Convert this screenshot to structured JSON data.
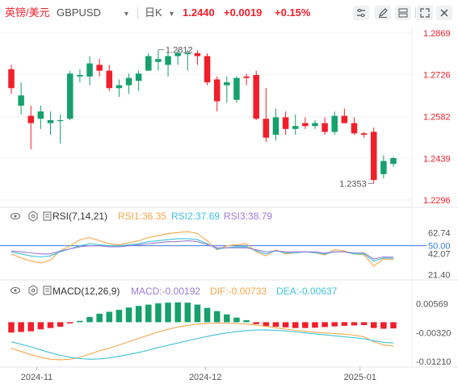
{
  "header": {
    "name": "英镑/美元",
    "symbol": "GBPUSD",
    "period": "日K",
    "price": "1.2440",
    "change": "+0.0019",
    "change_pct": "+0.15%"
  },
  "rsi_panel": {
    "title": "RSI(7,14,21)",
    "rsi1": "RSI1:36.35",
    "rsi2": "RSI2:37.69",
    "rsi3": "RSI3:38.79"
  },
  "macd_panel": {
    "title": "MACD(12,26,9)",
    "macd": "MACD:-0.00192",
    "dif": "DIF:-0.00733",
    "dea": "DEA:-0.00637"
  },
  "colors": {
    "up": "#16a06c",
    "down": "#f01f2a",
    "price": "#f01f2a",
    "rsi1": "#f5a64a",
    "rsi2": "#3fc1d8",
    "rsi3": "#9b7bd6",
    "dif": "#f5a64a",
    "dea": "#3fc1d8",
    "level": "#3a7bd5"
  },
  "chart_data": [
    {
      "type": "candlestick",
      "y_ticks": [
        "1.2869",
        "1.2726",
        "1.2582",
        "1.2439",
        "1.2296"
      ],
      "ylim": [
        1.2296,
        1.2869
      ],
      "x_ticks": [
        "2024-11",
        "2024-12",
        "2025-01"
      ],
      "annotations": {
        "high": "1.2812",
        "low": "1.2353"
      },
      "candles": [
        {
          "o": 1.2745,
          "h": 1.276,
          "l": 1.266,
          "c": 1.268
        },
        {
          "o": 1.262,
          "h": 1.27,
          "l": 1.259,
          "c": 1.2655
        },
        {
          "o": 1.2585,
          "h": 1.262,
          "l": 1.247,
          "c": 1.256
        },
        {
          "o": 1.2575,
          "h": 1.262,
          "l": 1.254,
          "c": 1.26
        },
        {
          "o": 1.256,
          "h": 1.26,
          "l": 1.252,
          "c": 1.257
        },
        {
          "o": 1.257,
          "h": 1.259,
          "l": 1.249,
          "c": 1.257
        },
        {
          "o": 1.2575,
          "h": 1.274,
          "l": 1.257,
          "c": 1.273
        },
        {
          "o": 1.272,
          "h": 1.2745,
          "l": 1.27,
          "c": 1.2725
        },
        {
          "o": 1.272,
          "h": 1.279,
          "l": 1.269,
          "c": 1.2765
        },
        {
          "o": 1.276,
          "h": 1.278,
          "l": 1.272,
          "c": 1.274
        },
        {
          "o": 1.274,
          "h": 1.276,
          "l": 1.267,
          "c": 1.268
        },
        {
          "o": 1.268,
          "h": 1.271,
          "l": 1.265,
          "c": 1.269
        },
        {
          "o": 1.269,
          "h": 1.273,
          "l": 1.266,
          "c": 1.2715
        },
        {
          "o": 1.2705,
          "h": 1.274,
          "l": 1.267,
          "c": 1.273
        },
        {
          "o": 1.274,
          "h": 1.28,
          "l": 1.274,
          "c": 1.279
        },
        {
          "o": 1.277,
          "h": 1.2812,
          "l": 1.274,
          "c": 1.278
        },
        {
          "o": 1.276,
          "h": 1.28,
          "l": 1.272,
          "c": 1.279
        },
        {
          "o": 1.279,
          "h": 1.2812,
          "l": 1.276,
          "c": 1.28
        },
        {
          "o": 1.28,
          "h": 1.281,
          "l": 1.274,
          "c": 1.28
        },
        {
          "o": 1.28,
          "h": 1.281,
          "l": 1.276,
          "c": 1.279
        },
        {
          "o": 1.279,
          "h": 1.28,
          "l": 1.269,
          "c": 1.27
        },
        {
          "o": 1.271,
          "h": 1.272,
          "l": 1.26,
          "c": 1.2635
        },
        {
          "o": 1.269,
          "h": 1.272,
          "l": 1.263,
          "c": 1.27
        },
        {
          "o": 1.264,
          "h": 1.272,
          "l": 1.263,
          "c": 1.2715
        },
        {
          "o": 1.272,
          "h": 1.273,
          "l": 1.269,
          "c": 1.2715
        },
        {
          "o": 1.2725,
          "h": 1.274,
          "l": 1.257,
          "c": 1.2575
        },
        {
          "o": 1.2575,
          "h": 1.268,
          "l": 1.2495,
          "c": 1.251
        },
        {
          "o": 1.252,
          "h": 1.261,
          "l": 1.25,
          "c": 1.258
        },
        {
          "o": 1.258,
          "h": 1.26,
          "l": 1.252,
          "c": 1.254
        },
        {
          "o": 1.254,
          "h": 1.259,
          "l": 1.252,
          "c": 1.255
        },
        {
          "o": 1.256,
          "h": 1.258,
          "l": 1.254,
          "c": 1.255
        },
        {
          "o": 1.255,
          "h": 1.257,
          "l": 1.254,
          "c": 1.256
        },
        {
          "o": 1.256,
          "h": 1.258,
          "l": 1.252,
          "c": 1.253
        },
        {
          "o": 1.253,
          "h": 1.26,
          "l": 1.252,
          "c": 1.2585
        },
        {
          "o": 1.2585,
          "h": 1.261,
          "l": 1.256,
          "c": 1.256
        },
        {
          "o": 1.256,
          "h": 1.258,
          "l": 1.252,
          "c": 1.2525
        },
        {
          "o": 1.2525,
          "h": 1.253,
          "l": 1.251,
          "c": 1.252
        },
        {
          "o": 1.253,
          "h": 1.2545,
          "l": 1.2353,
          "c": 1.2365
        },
        {
          "o": 1.2385,
          "h": 1.245,
          "l": 1.237,
          "c": 1.243
        },
        {
          "o": 1.242,
          "h": 1.2445,
          "l": 1.241,
          "c": 1.244
        }
      ],
      "last_price_series": [
        1.2745,
        1.268,
        1.26,
        1.257,
        1.257,
        1.273,
        1.2725,
        1.2765,
        1.274,
        1.268,
        1.269,
        1.2715,
        1.273,
        1.279,
        1.278,
        1.279,
        1.28,
        1.28,
        1.279,
        1.27,
        1.2635,
        1.27,
        1.2715,
        1.2715,
        1.2575,
        1.251,
        1.258,
        1.254,
        1.255,
        1.255,
        1.256,
        1.253,
        1.2585,
        1.256,
        1.2525,
        1.252,
        1.2365,
        1.243,
        1.244,
        1.244
      ]
    },
    {
      "type": "line",
      "name": "RSI(7,14,21)",
      "y_ticks": [
        "62.74",
        "50.00",
        "42.07",
        "21.40"
      ],
      "ylim": [
        18,
        68
      ],
      "reference_line": 50,
      "series": [
        {
          "name": "RSI1",
          "values": [
            42,
            38,
            35,
            33,
            36,
            45,
            50,
            56,
            58,
            55,
            52,
            51,
            53,
            55,
            58,
            60,
            62,
            63,
            64,
            62,
            55,
            46,
            50,
            51,
            52,
            44,
            40,
            46,
            42,
            43,
            44,
            43,
            41,
            46,
            45,
            42,
            41,
            30,
            37,
            36.35
          ]
        },
        {
          "name": "RSI2",
          "values": [
            44,
            42,
            40,
            39,
            40,
            44,
            47,
            50,
            52,
            51,
            50,
            50,
            51,
            52,
            54,
            55,
            56,
            57,
            57,
            56,
            52,
            47,
            48,
            49,
            49,
            45,
            42,
            45,
            43,
            43,
            44,
            43,
            42,
            44,
            44,
            42,
            42,
            35,
            38,
            37.69
          ]
        },
        {
          "name": "RSI3",
          "values": [
            45,
            44,
            43,
            42,
            42,
            45,
            47,
            49,
            50,
            50,
            49,
            49,
            50,
            51,
            52,
            53,
            54,
            54,
            55,
            54,
            51,
            48,
            48,
            48,
            48,
            46,
            44,
            45,
            44,
            44,
            44,
            44,
            43,
            44,
            44,
            43,
            43,
            37,
            39,
            38.79
          ]
        }
      ]
    },
    {
      "type": "bar+line",
      "name": "MACD(12,26,9)",
      "y_ticks": [
        "0.00569",
        "-0.00320",
        "-0.01210"
      ],
      "ylim": [
        -0.0133,
        0.0068
      ],
      "histogram": [
        -0.0032,
        -0.003,
        -0.0028,
        -0.0022,
        -0.0018,
        -0.0014,
        -0.0004,
        0.0004,
        0.0016,
        0.0026,
        0.0032,
        0.0038,
        0.0045,
        0.005,
        0.0054,
        0.0058,
        0.006,
        0.0061,
        0.006,
        0.0054,
        0.0044,
        0.0034,
        0.0024,
        0.0014,
        0.0006,
        -0.0006,
        -0.0012,
        -0.0014,
        -0.0016,
        -0.0018,
        -0.0018,
        -0.0017,
        -0.0015,
        -0.0013,
        -0.0011,
        -0.001,
        -0.0009,
        -0.0018,
        -0.002,
        -0.00192
      ],
      "series": [
        {
          "name": "DIF",
          "values": [
            -0.008,
            -0.009,
            -0.01,
            -0.0108,
            -0.0114,
            -0.0116,
            -0.0114,
            -0.0108,
            -0.0098,
            -0.0088,
            -0.008,
            -0.007,
            -0.006,
            -0.005,
            -0.004,
            -0.003,
            -0.0022,
            -0.0015,
            -0.001,
            -0.0006,
            -0.0004,
            -0.0003,
            -0.0003,
            -0.0004,
            -0.0006,
            -0.0009,
            -0.0013,
            -0.0017,
            -0.0021,
            -0.0025,
            -0.0028,
            -0.0031,
            -0.0033,
            -0.0035,
            -0.0037,
            -0.004,
            -0.0045,
            -0.006,
            -0.007,
            -0.00733
          ]
        },
        {
          "name": "DEA",
          "values": [
            -0.006,
            -0.0068,
            -0.0076,
            -0.0085,
            -0.0094,
            -0.0102,
            -0.0108,
            -0.0112,
            -0.0114,
            -0.0113,
            -0.011,
            -0.0105,
            -0.0099,
            -0.0093,
            -0.0086,
            -0.0078,
            -0.0071,
            -0.0064,
            -0.0057,
            -0.005,
            -0.0044,
            -0.0038,
            -0.0033,
            -0.0029,
            -0.0026,
            -0.0024,
            -0.0024,
            -0.0025,
            -0.0027,
            -0.003,
            -0.0033,
            -0.0036,
            -0.0039,
            -0.0042,
            -0.0045,
            -0.0048,
            -0.0051,
            -0.0057,
            -0.0062,
            -0.00637
          ]
        }
      ]
    }
  ]
}
